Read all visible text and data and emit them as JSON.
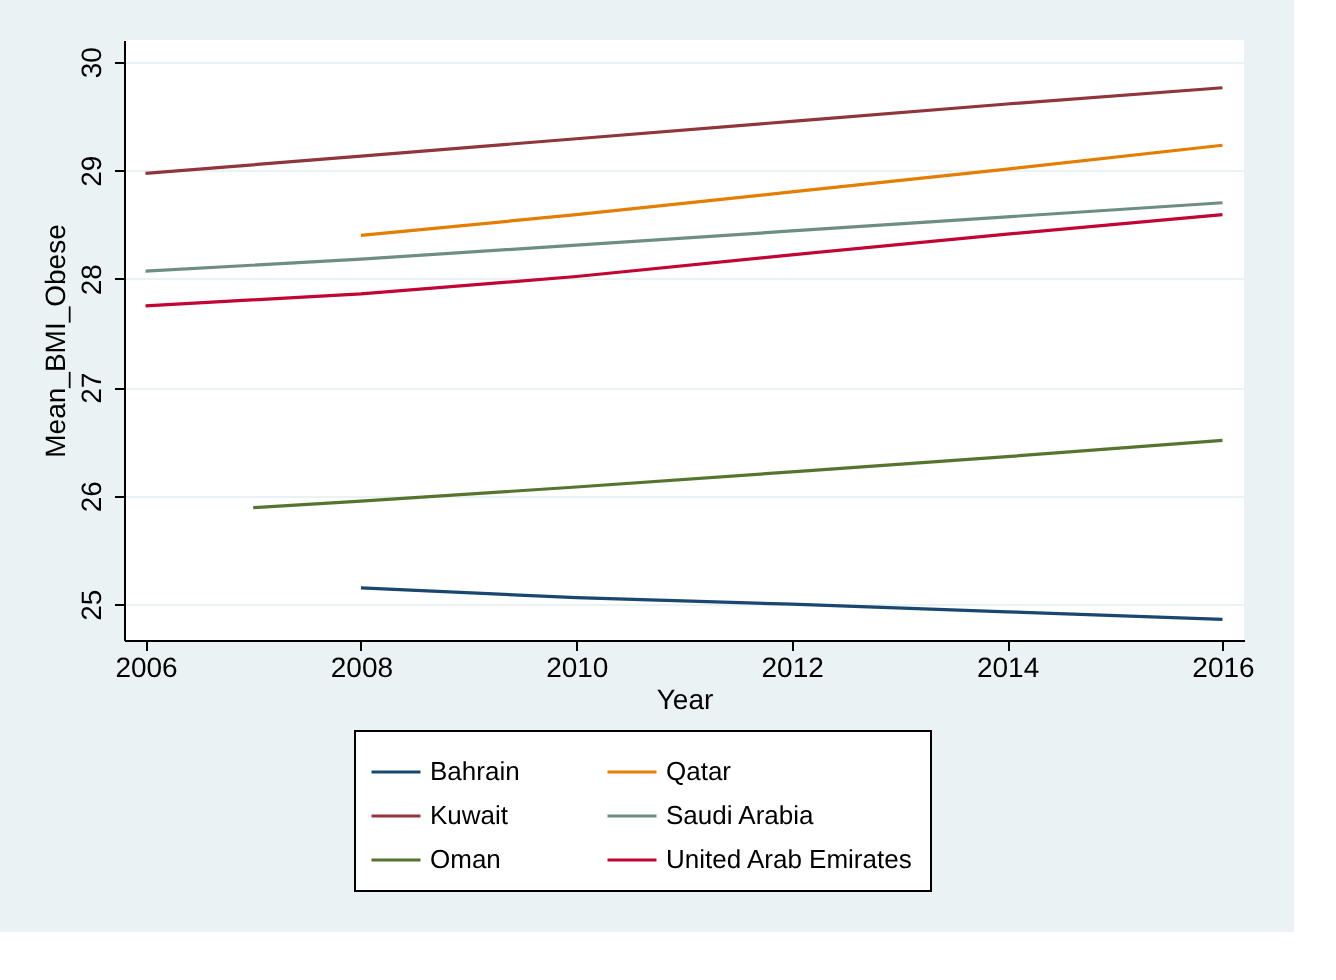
{
  "chart_data": {
    "type": "line",
    "xlabel": "Year",
    "ylabel": "Mean_BMI_Obese",
    "xlim": [
      2005.8,
      2016.2
    ],
    "xticks": [
      2006,
      2008,
      2010,
      2012,
      2014,
      2016
    ],
    "ylim": [
      24.67,
      30.2
    ],
    "yticks": [
      25,
      26,
      27,
      28,
      29,
      30
    ],
    "grid": "y",
    "legend": "bottom",
    "line_style": "solid",
    "series": [
      {
        "name": "Bahrain",
        "color": "#1a476f",
        "x": [
          2008,
          2010,
          2012,
          2014,
          2016
        ],
        "values": [
          25.15,
          25.06,
          25.0,
          24.93,
          24.86
        ]
      },
      {
        "name": "Kuwait",
        "color": "#90353b",
        "x": [
          2006,
          2008,
          2010,
          2012,
          2014,
          2016
        ],
        "values": [
          28.97,
          29.13,
          29.29,
          29.45,
          29.61,
          29.76
        ]
      },
      {
        "name": "Oman",
        "color": "#55752f",
        "x": [
          2007,
          2008,
          2010,
          2012,
          2014,
          2016
        ],
        "values": [
          25.89,
          25.95,
          26.08,
          26.22,
          26.36,
          26.51
        ]
      },
      {
        "name": "Qatar",
        "color": "#e37e00",
        "x": [
          2008,
          2010,
          2012,
          2014,
          2016
        ],
        "values": [
          28.4,
          28.59,
          28.8,
          29.01,
          29.23
        ]
      },
      {
        "name": "Saudi Arabia",
        "color": "#6e8e84",
        "x": [
          2006,
          2008,
          2010,
          2012,
          2014,
          2016
        ],
        "values": [
          28.07,
          28.18,
          28.31,
          28.44,
          28.57,
          28.7
        ]
      },
      {
        "name": "United Arab Emirates",
        "color": "#c10534",
        "x": [
          2006,
          2008,
          2010,
          2012,
          2014,
          2016
        ],
        "values": [
          27.75,
          27.86,
          28.02,
          28.22,
          28.41,
          28.59
        ]
      }
    ]
  }
}
